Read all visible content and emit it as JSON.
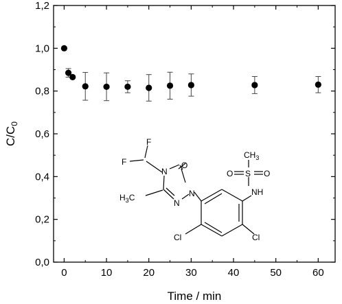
{
  "chart_data": {
    "type": "scatter",
    "title": "",
    "xlabel": "Time / min",
    "ylabel": "C/C",
    "ylabel_subscript": "0",
    "xlim": [
      -2.5,
      64
    ],
    "ylim": [
      0,
      1.2
    ],
    "xticks": [
      0,
      10,
      20,
      30,
      40,
      50,
      60
    ],
    "xtick_labels": [
      "0",
      "10",
      "20",
      "30",
      "40",
      "50",
      "60"
    ],
    "yticks": [
      0,
      0.2,
      0.4,
      0.6,
      0.8,
      1.0,
      1.2
    ],
    "ytick_labels": [
      "0,0",
      "0,2",
      "0,4",
      "0,6",
      "0,8",
      "1,0",
      "1,2"
    ],
    "grid": false,
    "legend": "none",
    "marker_color": "#000000",
    "series": [
      {
        "x": [
          0,
          1,
          2,
          5,
          10,
          15,
          20,
          25,
          30,
          45,
          60
        ],
        "y": [
          1.0,
          0.885,
          0.865,
          0.822,
          0.82,
          0.82,
          0.815,
          0.825,
          0.828,
          0.828,
          0.83
        ],
        "error": [
          0,
          0.02,
          0,
          0.065,
          0.065,
          0.028,
          0.062,
          0.063,
          0.052,
          0.04,
          0.038
        ]
      }
    ]
  },
  "inset": {
    "atom_F_top": "F",
    "atom_F_left": "F",
    "atom_N4": "N",
    "atom_O": "O",
    "atom_N1": "N",
    "atom_N2": "N",
    "methyl_H": "H",
    "methyl_sub": "3",
    "methyl_C": "C",
    "sulfonyl_CH": "CH",
    "sulfonyl_sub": "3",
    "atom_S": "S",
    "atom_O_left": "O",
    "atom_O_right": "O",
    "atom_NH": "NH",
    "atom_Cl_left": "Cl",
    "atom_Cl_right": "Cl"
  }
}
